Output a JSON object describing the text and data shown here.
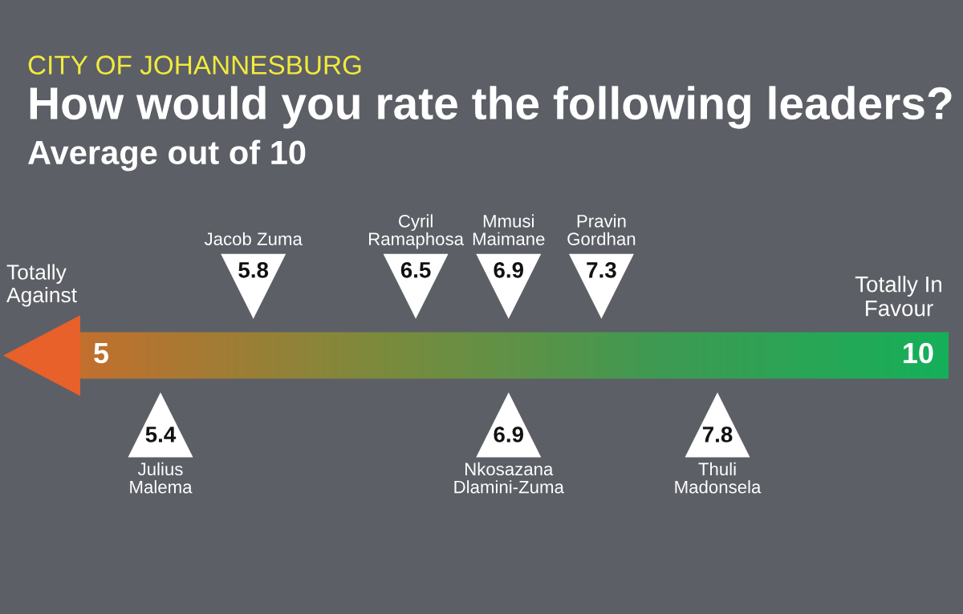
{
  "chart_data": {
    "type": "other",
    "title": "How would you rate the following leaders?",
    "subtitle": "Average out of 10",
    "annotations": [
      "CITY OF JOHANNESBURG",
      "Totally\nAgainst",
      "Totally In\nFavour",
      "5",
      "10"
    ],
    "categories": [
      "Julius\nMalema",
      "Jacob Zuma",
      "Cyril\nRamaphosa",
      "Mmusi\nMaimane",
      "Nkosazana\nDlamini-Zuma",
      "Pravin\nGordhan",
      "Thuli\nMadonsela"
    ],
    "series": [
      {
        "values": [
          null,
          5.8,
          6.5,
          6.9,
          null,
          7.3,
          null
        ],
        "color": "#ffffff"
      },
      {
        "values": [
          5.4,
          null,
          null,
          null,
          6.9,
          null,
          7.8
        ],
        "color": "#ffffff"
      }
    ],
    "data_labels": true
  }
}
